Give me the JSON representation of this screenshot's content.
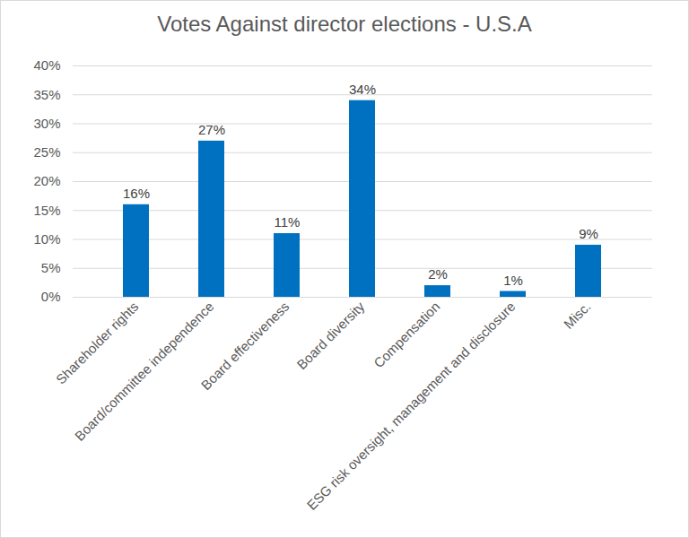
{
  "chart_data": {
    "type": "bar",
    "title": "Votes Against director elections - U.S.A",
    "categories": [
      "Shareholder rights",
      "Board/committee independence",
      "Board effectiveness",
      "Board diversity",
      "Compensation",
      "ESG risk oversight, management and disclosure",
      "Misc."
    ],
    "values": [
      16,
      27,
      11,
      34,
      2,
      1,
      9
    ],
    "value_labels": [
      "16%",
      "27%",
      "11%",
      "34%",
      "2%",
      "1%",
      "9%"
    ],
    "color": "#0070c0",
    "ylim": [
      0,
      40
    ],
    "yticks": [
      {
        "value": 0,
        "label": "0%"
      },
      {
        "value": 5,
        "label": "5%"
      },
      {
        "value": 10,
        "label": "10%"
      },
      {
        "value": 15,
        "label": "15%"
      },
      {
        "value": 20,
        "label": "20%"
      },
      {
        "value": 25,
        "label": "25%"
      },
      {
        "value": 30,
        "label": "30%"
      },
      {
        "value": 35,
        "label": "35%"
      },
      {
        "value": 40,
        "label": "40%"
      }
    ],
    "grid": true,
    "data_labels": true
  }
}
